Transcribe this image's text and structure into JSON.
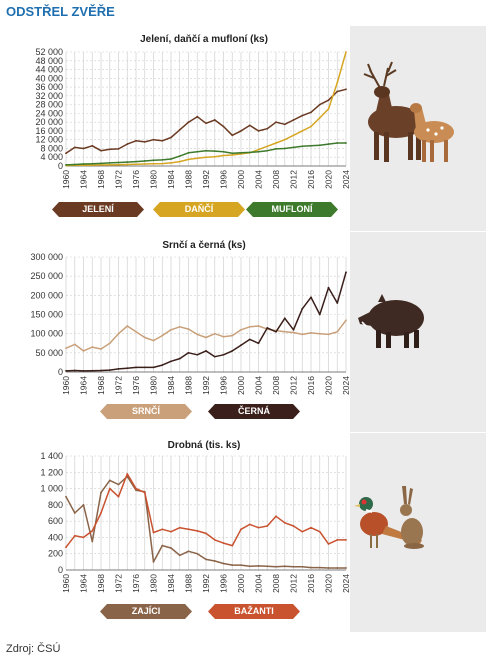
{
  "page": {
    "title": "ODSTŘEL ZVĚŘE",
    "source": "Zdroj: ČSÚ"
  },
  "colors": {
    "jeleni": "#6b3a22",
    "danci": "#d6a623",
    "mufloni": "#3e7a2c",
    "srnci": "#c9a07a",
    "cerna": "#3a1f1a",
    "zajici": "#8a6448",
    "bazanti": "#c9522f",
    "grid": "#d0d0d0"
  },
  "icons": [
    "deer-icon",
    "boar-icon",
    "pheasant-icon",
    "hare-icon"
  ],
  "chart_data": [
    {
      "type": "line",
      "title": "Jelení, daňčí a mufloní (ks)",
      "x_ticks": [
        "1960",
        "1964",
        "1968",
        "1972",
        "1976",
        "1980",
        "1984",
        "1988",
        "1992",
        "1996",
        "2000",
        "2004",
        "2008",
        "2012",
        "2016",
        "2020",
        "2024"
      ],
      "y_ticks": [
        "0",
        "4 000",
        "8 000",
        "12 000",
        "16 000",
        "20 000",
        "24 000",
        "28 000",
        "32 000",
        "36 000",
        "40 000",
        "44 000",
        "48 000",
        "52 000"
      ],
      "ylim": [
        0,
        52000
      ],
      "xlim": [
        1960,
        2024
      ],
      "x": [
        1960,
        1962,
        1964,
        1966,
        1968,
        1970,
        1972,
        1974,
        1976,
        1978,
        1980,
        1982,
        1984,
        1986,
        1988,
        1990,
        1992,
        1994,
        1996,
        1998,
        2000,
        2002,
        2004,
        2006,
        2008,
        2010,
        2012,
        2014,
        2016,
        2018,
        2020,
        2022,
        2024
      ],
      "series": [
        {
          "name": "JELENÍ",
          "color_key": "jeleni",
          "values": [
            5800,
            8500,
            8000,
            9200,
            7000,
            7600,
            7800,
            10000,
            11500,
            11000,
            12000,
            11500,
            13000,
            16500,
            20000,
            22500,
            19500,
            21000,
            18000,
            14000,
            16000,
            18500,
            16000,
            17000,
            20000,
            19000,
            21000,
            23000,
            24500,
            28000,
            30000,
            34000,
            35000
          ]
        },
        {
          "name": "DAŇČÍ",
          "color_key": "danci",
          "values": [
            200,
            300,
            300,
            400,
            500,
            500,
            600,
            700,
            800,
            900,
            1000,
            1100,
            1400,
            2000,
            3000,
            3500,
            4000,
            4200,
            4800,
            5000,
            5500,
            6000,
            7500,
            9000,
            10500,
            12000,
            14000,
            16000,
            18000,
            22000,
            26000,
            38000,
            52000
          ]
        },
        {
          "name": "MUFLONÍ",
          "color_key": "mufloni",
          "values": [
            500,
            700,
            900,
            1000,
            1200,
            1400,
            1600,
            1800,
            2000,
            2300,
            2600,
            2800,
            3200,
            4500,
            6000,
            6500,
            7000,
            6800,
            6500,
            5800,
            6000,
            6200,
            6500,
            7000,
            7800,
            8000,
            8500,
            9000,
            9200,
            9500,
            10000,
            10500,
            10500
          ]
        }
      ]
    },
    {
      "type": "line",
      "title": "Srnčí a černá (ks)",
      "x_ticks": [
        "1960",
        "1964",
        "1968",
        "1972",
        "1976",
        "1980",
        "1984",
        "1988",
        "1992",
        "1996",
        "2000",
        "2004",
        "2008",
        "2012",
        "2016",
        "2020",
        "2024"
      ],
      "y_ticks": [
        "0",
        "50 000",
        "100 000",
        "150 000",
        "200 000",
        "250 000",
        "300 000"
      ],
      "ylim": [
        0,
        300000
      ],
      "xlim": [
        1960,
        2024
      ],
      "x": [
        1960,
        1962,
        1964,
        1966,
        1968,
        1970,
        1972,
        1974,
        1976,
        1978,
        1980,
        1982,
        1984,
        1986,
        1988,
        1990,
        1992,
        1994,
        1996,
        1998,
        2000,
        2002,
        2004,
        2006,
        2008,
        2010,
        2012,
        2014,
        2016,
        2018,
        2020,
        2022,
        2024
      ],
      "series": [
        {
          "name": "SRNČÍ",
          "color_key": "srnci",
          "values": [
            62000,
            72000,
            55000,
            65000,
            60000,
            75000,
            100000,
            120000,
            105000,
            90000,
            82000,
            95000,
            110000,
            118000,
            112000,
            98000,
            90000,
            100000,
            92000,
            95000,
            110000,
            118000,
            120000,
            112000,
            108000,
            105000,
            103000,
            98000,
            102000,
            100000,
            98000,
            105000,
            135000
          ]
        },
        {
          "name": "ČERNÁ",
          "color_key": "cerna",
          "values": [
            3000,
            4000,
            3000,
            3500,
            4000,
            5000,
            8000,
            10000,
            12000,
            12000,
            12000,
            18000,
            28000,
            35000,
            50000,
            45000,
            55000,
            40000,
            45000,
            55000,
            70000,
            85000,
            75000,
            115000,
            105000,
            140000,
            110000,
            165000,
            195000,
            150000,
            220000,
            180000,
            260000
          ]
        }
      ]
    },
    {
      "type": "line",
      "title": "Drobná (tis. ks)",
      "x_ticks": [
        "1960",
        "1964",
        "1968",
        "1972",
        "1976",
        "1980",
        "1984",
        "1988",
        "1992",
        "1996",
        "2000",
        "2004",
        "2008",
        "2012",
        "2016",
        "2020",
        "2024"
      ],
      "y_ticks": [
        "0",
        "200",
        "400",
        "600",
        "800",
        "1 000",
        "1 200",
        "1 400"
      ],
      "ylim": [
        0,
        1400
      ],
      "xlim": [
        1960,
        2024
      ],
      "x": [
        1960,
        1962,
        1964,
        1966,
        1968,
        1970,
        1972,
        1974,
        1976,
        1978,
        1980,
        1982,
        1984,
        1986,
        1988,
        1990,
        1992,
        1994,
        1996,
        1998,
        2000,
        2002,
        2004,
        2006,
        2008,
        2010,
        2012,
        2014,
        2016,
        2018,
        2020,
        2022,
        2024
      ],
      "series": [
        {
          "name": "ZAJÍCI",
          "color_key": "zajici",
          "values": [
            900,
            700,
            800,
            350,
            950,
            1100,
            1050,
            1150,
            980,
            960,
            100,
            300,
            270,
            180,
            230,
            200,
            130,
            110,
            80,
            60,
            60,
            45,
            50,
            45,
            40,
            45,
            40,
            40,
            30,
            30,
            25,
            25,
            25
          ]
        },
        {
          "name": "BAŽANTI",
          "color_key": "bazanti",
          "values": [
            280,
            420,
            400,
            480,
            700,
            1000,
            900,
            1180,
            1000,
            950,
            460,
            500,
            470,
            520,
            500,
            480,
            450,
            370,
            330,
            300,
            500,
            560,
            520,
            540,
            660,
            580,
            540,
            470,
            520,
            470,
            320,
            370,
            370
          ]
        }
      ]
    }
  ]
}
